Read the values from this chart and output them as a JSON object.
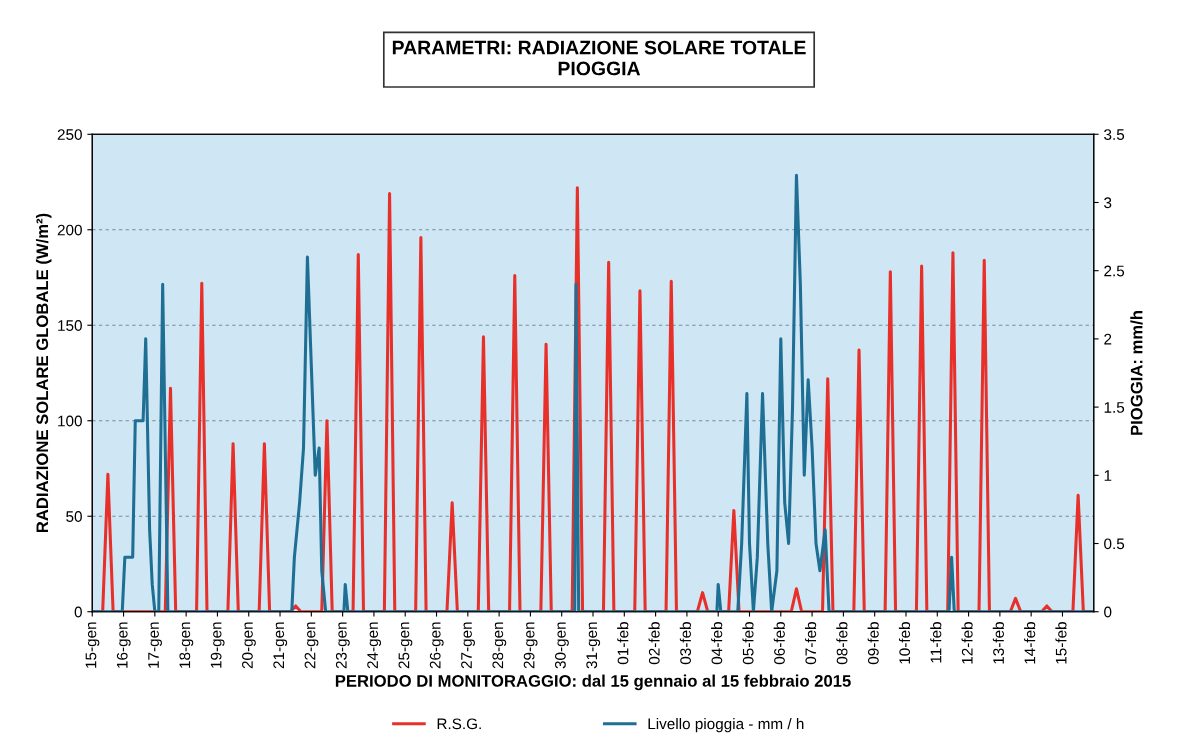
{
  "chart_data": {
    "type": "line",
    "title": "PARAMETRI: RADIAZIONE SOLARE TOTALE\nPIOGGIA",
    "xlabel": "PERIODO DI MONITORAGGIO: dal 15 gennaio al 15 febbraio 2015",
    "ylabel": "RADIAZIONE SOLARE GLOBALE (W/m²)",
    "y2label": "PIOGGIA: mm/h",
    "xlim": [
      "2015-01-15",
      "2015-02-16"
    ],
    "xticks": [
      {
        "value": "2015-01-15",
        "label": "15-gen"
      },
      {
        "value": "2015-01-16",
        "label": "16-gen"
      },
      {
        "value": "2015-01-17",
        "label": "17-gen"
      },
      {
        "value": "2015-01-18",
        "label": "18-gen"
      },
      {
        "value": "2015-01-19",
        "label": "19-gen"
      },
      {
        "value": "2015-01-20",
        "label": "20-gen"
      },
      {
        "value": "2015-01-21",
        "label": "21-gen"
      },
      {
        "value": "2015-01-22",
        "label": "22-gen"
      },
      {
        "value": "2015-01-23",
        "label": "23-gen"
      },
      {
        "value": "2015-01-24",
        "label": "24-gen"
      },
      {
        "value": "2015-01-25",
        "label": "25-gen"
      },
      {
        "value": "2015-01-26",
        "label": "26-gen"
      },
      {
        "value": "2015-01-27",
        "label": "27-gen"
      },
      {
        "value": "2015-01-28",
        "label": "28-gen"
      },
      {
        "value": "2015-01-29",
        "label": "29-gen"
      },
      {
        "value": "2015-01-30",
        "label": "30-gen"
      },
      {
        "value": "2015-01-31",
        "label": "31-gen"
      },
      {
        "value": "2015-02-01",
        "label": "01-feb"
      },
      {
        "value": "2015-02-02",
        "label": "02-feb"
      },
      {
        "value": "2015-02-03",
        "label": "03-feb"
      },
      {
        "value": "2015-02-04",
        "label": "04-feb"
      },
      {
        "value": "2015-02-05",
        "label": "05-feb"
      },
      {
        "value": "2015-02-06",
        "label": "06-feb"
      },
      {
        "value": "2015-02-07",
        "label": "07-feb"
      },
      {
        "value": "2015-02-08",
        "label": "08-feb"
      },
      {
        "value": "2015-02-09",
        "label": "09-feb"
      },
      {
        "value": "2015-02-10",
        "label": "10-feb"
      },
      {
        "value": "2015-02-11",
        "label": "11-feb"
      },
      {
        "value": "2015-02-12",
        "label": "12-feb"
      },
      {
        "value": "2015-02-13",
        "label": "13-feb"
      },
      {
        "value": "2015-02-14",
        "label": "14-feb"
      },
      {
        "value": "2015-02-15",
        "label": "15-feb"
      }
    ],
    "ylim": [
      0,
      250
    ],
    "yticks": [
      0,
      50,
      100,
      150,
      200,
      250
    ],
    "y2lim": [
      0,
      3.5
    ],
    "y2ticks": [
      0,
      0.5,
      1,
      1.5,
      2,
      2.5,
      3,
      3.5
    ],
    "grid": "y",
    "legend": "bottom",
    "marker": "none",
    "line_style": "solid",
    "series": [
      {
        "name": "R.S.G.",
        "color": "#e8302a",
        "x": [
          "2015-01-15T00:00",
          "2015-01-15T08:00",
          "2015-01-15T12:00",
          "2015-01-15T16:00",
          "2015-01-17T08:00",
          "2015-01-17T12:00",
          "2015-01-17T16:00",
          "2015-01-18T08:00",
          "2015-01-18T12:00",
          "2015-01-18T16:00",
          "2015-01-19T08:00",
          "2015-01-19T12:00",
          "2015-01-19T16:00",
          "2015-01-20T08:00",
          "2015-01-20T12:00",
          "2015-01-20T16:00",
          "2015-01-21T08:00",
          "2015-01-21T12:00",
          "2015-01-21T16:00",
          "2015-01-22T08:00",
          "2015-01-22T12:00",
          "2015-01-22T16:00",
          "2015-01-23T08:00",
          "2015-01-23T12:00",
          "2015-01-23T16:00",
          "2015-01-24T08:00",
          "2015-01-24T12:00",
          "2015-01-24T16:00",
          "2015-01-25T08:00",
          "2015-01-25T12:00",
          "2015-01-25T16:00",
          "2015-01-26T08:00",
          "2015-01-26T12:00",
          "2015-01-26T16:00",
          "2015-01-27T08:00",
          "2015-01-27T12:00",
          "2015-01-27T16:00",
          "2015-01-28T08:00",
          "2015-01-28T12:00",
          "2015-01-28T16:00",
          "2015-01-29T08:00",
          "2015-01-29T12:00",
          "2015-01-29T16:00",
          "2015-01-30T08:00",
          "2015-01-30T12:00",
          "2015-01-30T16:00",
          "2015-01-31T08:00",
          "2015-01-31T12:00",
          "2015-01-31T16:00",
          "2015-02-01T08:00",
          "2015-02-01T12:00",
          "2015-02-01T16:00",
          "2015-02-02T08:00",
          "2015-02-02T12:00",
          "2015-02-02T16:00",
          "2015-02-03T08:00",
          "2015-02-03T12:00",
          "2015-02-03T16:00",
          "2015-02-04T08:00",
          "2015-02-04T12:00",
          "2015-02-04T16:00",
          "2015-02-06T08:00",
          "2015-02-06T12:00",
          "2015-02-06T16:00",
          "2015-02-07T08:00",
          "2015-02-07T12:00",
          "2015-02-07T16:00",
          "2015-02-08T08:00",
          "2015-02-08T12:00",
          "2015-02-08T16:00",
          "2015-02-09T08:00",
          "2015-02-09T12:00",
          "2015-02-09T16:00",
          "2015-02-10T08:00",
          "2015-02-10T12:00",
          "2015-02-10T16:00",
          "2015-02-11T08:00",
          "2015-02-11T12:00",
          "2015-02-11T16:00",
          "2015-02-12T08:00",
          "2015-02-12T12:00",
          "2015-02-12T16:00",
          "2015-02-13T08:00",
          "2015-02-13T12:00",
          "2015-02-13T16:00",
          "2015-02-14T08:00",
          "2015-02-14T12:00",
          "2015-02-14T16:00",
          "2015-02-15T08:00",
          "2015-02-15T12:00",
          "2015-02-15T16:00",
          "2015-02-16T00:00"
        ],
        "values": [
          0,
          0,
          72,
          0,
          0,
          117,
          0,
          0,
          172,
          0,
          0,
          88,
          0,
          0,
          88,
          0,
          0,
          3,
          0,
          0,
          100,
          0,
          0,
          187,
          0,
          0,
          219,
          0,
          0,
          196,
          0,
          0,
          57,
          0,
          0,
          144,
          0,
          0,
          176,
          0,
          0,
          140,
          0,
          0,
          222,
          0,
          0,
          183,
          0,
          0,
          168,
          0,
          0,
          173,
          0,
          0,
          10,
          0,
          0,
          53,
          0,
          0,
          12,
          0,
          0,
          122,
          0,
          0,
          137,
          0,
          0,
          178,
          0,
          0,
          181,
          0,
          0,
          188,
          0,
          0,
          184,
          0,
          0,
          7,
          0,
          0,
          3,
          0,
          0,
          61,
          0,
          0
        ]
      },
      {
        "name": "Livello pioggia - mm / h",
        "color": "#1f6f95",
        "axis": "y2",
        "x": [
          "2015-01-15T00:00",
          "2015-01-15T23:00",
          "2015-01-16T01:00",
          "2015-01-16T07:00",
          "2015-01-16T09:00",
          "2015-01-16T15:00",
          "2015-01-16T17:00",
          "2015-01-16T20:00",
          "2015-01-16T22:00",
          "2015-01-17T00:00",
          "2015-01-17T03:00",
          "2015-01-17T06:00",
          "2015-01-17T10:00",
          "2015-01-21T09:00",
          "2015-01-21T11:00",
          "2015-01-21T15:00",
          "2015-01-21T18:00",
          "2015-01-21T21:00",
          "2015-01-22T00:00",
          "2015-01-22T03:00",
          "2015-01-22T06:00",
          "2015-01-22T08:00",
          "2015-01-22T11:00",
          "2015-01-23T01:00",
          "2015-01-23T02:00",
          "2015-01-23T04:00",
          "2015-01-30T10:00",
          "2015-01-30T11:00",
          "2015-01-30T13:00",
          "2015-02-03T23:00",
          "2015-02-04T00:00",
          "2015-02-04T02:00",
          "2015-02-04T15:00",
          "2015-02-04T18:00",
          "2015-02-04T22:00",
          "2015-02-05T00:00",
          "2015-02-05T03:00",
          "2015-02-05T06:00",
          "2015-02-05T10:00",
          "2015-02-05T14:00",
          "2015-02-05T17:00",
          "2015-02-05T21:00",
          "2015-02-06T00:00",
          "2015-02-06T03:00",
          "2015-02-06T06:00",
          "2015-02-06T09:00",
          "2015-02-06T12:00",
          "2015-02-06T15:00",
          "2015-02-06T18:00",
          "2015-02-06T21:00",
          "2015-02-07T00:00",
          "2015-02-07T03:00",
          "2015-02-07T06:00",
          "2015-02-07T10:00",
          "2015-02-07T13:00",
          "2015-02-11T09:00",
          "2015-02-11T11:00",
          "2015-02-11T13:00",
          "2015-02-16T00:00"
        ],
        "values": [
          0,
          0,
          0.4,
          0.4,
          1.4,
          1.4,
          2.0,
          0.6,
          0.2,
          0,
          0,
          2.4,
          0,
          0,
          0.4,
          0.8,
          1.2,
          2.6,
          1.8,
          1.0,
          1.2,
          0.3,
          0,
          0,
          0.2,
          0,
          0,
          2.4,
          0,
          0,
          0.2,
          0,
          0,
          0.5,
          1.6,
          0.5,
          0,
          0.4,
          1.6,
          0.5,
          0,
          0.3,
          2.0,
          0.8,
          0.5,
          1.5,
          3.2,
          2.4,
          1.0,
          1.7,
          1.2,
          0.5,
          0.3,
          0.6,
          0,
          0,
          0.4,
          0,
          0
        ]
      }
    ]
  }
}
